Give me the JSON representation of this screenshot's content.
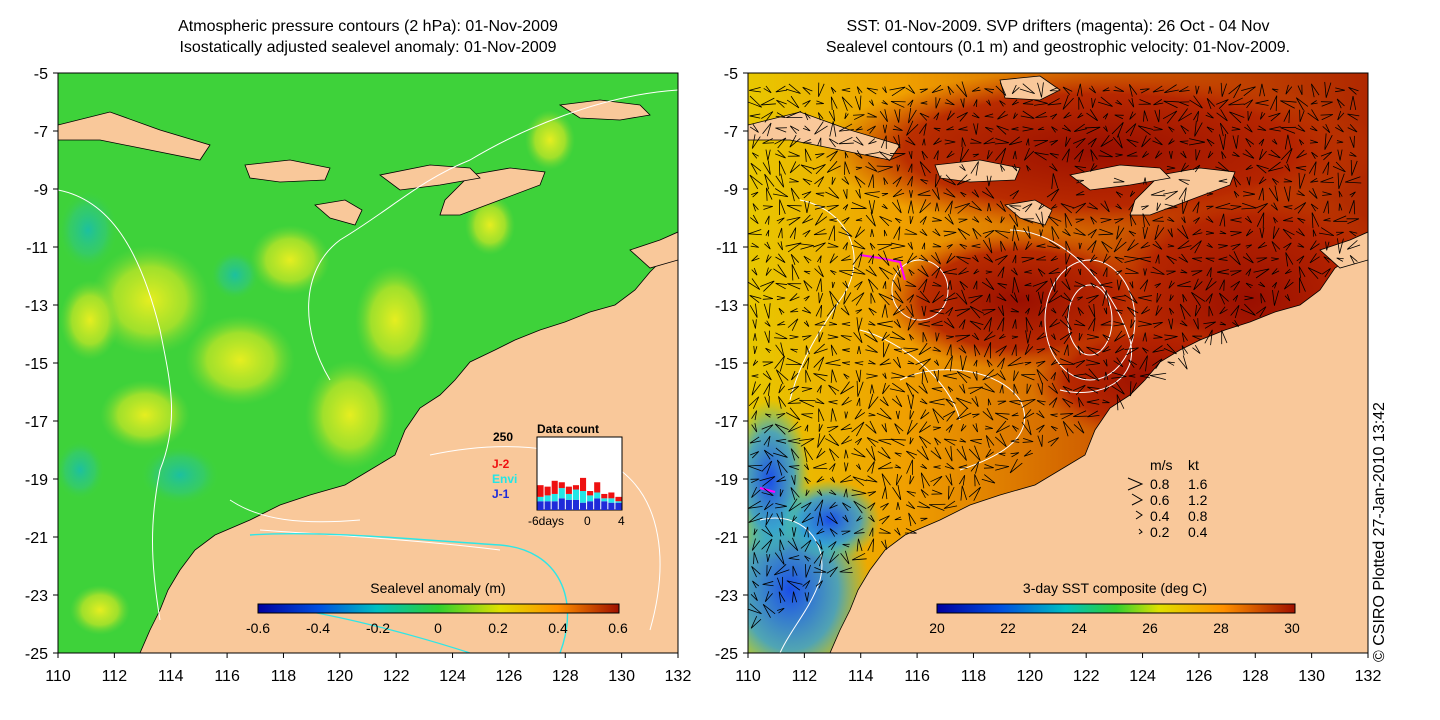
{
  "left_panel": {
    "title_line1": "Atmospheric pressure contours (2 hPa): 01-Nov-2009",
    "title_line2": "Isostatically adjusted sealevel anomaly: 01-Nov-2009",
    "colorbar_label": "Sealevel anomaly (m)",
    "colorbar_ticks": [
      "-0.6",
      "-0.4",
      "-0.2",
      "0",
      "0.2",
      "0.4",
      "0.6"
    ],
    "inset": {
      "title": "Data count",
      "y_max_label": "250",
      "x_labels": [
        "-6days",
        "0",
        "4"
      ],
      "legend": [
        {
          "label": "J-2",
          "color": "#ee1111"
        },
        {
          "label": "Envi",
          "color": "#22e6e6"
        },
        {
          "label": "J-1",
          "color": "#1f2bd9"
        }
      ],
      "bars": [
        {
          "j1": 30,
          "envi": 15,
          "j2": 40
        },
        {
          "j1": 30,
          "envi": 20,
          "j2": 30
        },
        {
          "j1": 30,
          "envi": 25,
          "j2": 45
        },
        {
          "j1": 40,
          "envi": 35,
          "j2": 20
        },
        {
          "j1": 35,
          "envi": 20,
          "j2": 25
        },
        {
          "j1": 35,
          "envi": 35,
          "j2": 15
        },
        {
          "j1": 25,
          "envi": 40,
          "j2": 45
        },
        {
          "j1": 30,
          "envi": 20,
          "j2": 15
        },
        {
          "j1": 40,
          "envi": 20,
          "j2": 35
        },
        {
          "j1": 30,
          "envi": 10,
          "j2": 15
        },
        {
          "j1": 25,
          "envi": 15,
          "j2": 20
        },
        {
          "j1": 25,
          "envi": 5,
          "j2": 15
        }
      ]
    }
  },
  "right_panel": {
    "title_line1": "SST: 01-Nov-2009. SVP drifters (magenta): 26 Oct - 04 Nov",
    "title_line2": "Sealevel contours (0.1 m) and geostrophic velocity: 01-Nov-2009.",
    "colorbar_label": "3-day SST composite (deg C)",
    "colorbar_ticks": [
      "20",
      "22",
      "24",
      "26",
      "28",
      "30"
    ],
    "velocity_legend": {
      "header_ms": "m/s",
      "header_kt": "kt",
      "rows": [
        {
          "ms": "0.8",
          "kt": "1.6"
        },
        {
          "ms": "0.6",
          "kt": "1.2"
        },
        {
          "ms": "0.4",
          "kt": "0.8"
        },
        {
          "ms": "0.2",
          "kt": "0.4"
        }
      ]
    }
  },
  "axes": {
    "lon_ticks": [
      "110",
      "112",
      "114",
      "116",
      "118",
      "120",
      "122",
      "124",
      "126",
      "128",
      "130",
      "132"
    ],
    "lat_ticks": [
      "-5",
      "-7",
      "-9",
      "-11",
      "-13",
      "-15",
      "-17",
      "-19",
      "-21",
      "-23",
      "-25"
    ],
    "lon_range": [
      110,
      132
    ],
    "lat_range": [
      -5,
      -25
    ]
  },
  "credit": "© CSIRO Plotted 27-Jan-2010 13:42",
  "colors": {
    "land": "#f9c89a",
    "ocean_anomaly_base": "#3ed23a",
    "sst_hot": "#a31400",
    "sst_warm": "#e07a00"
  }
}
